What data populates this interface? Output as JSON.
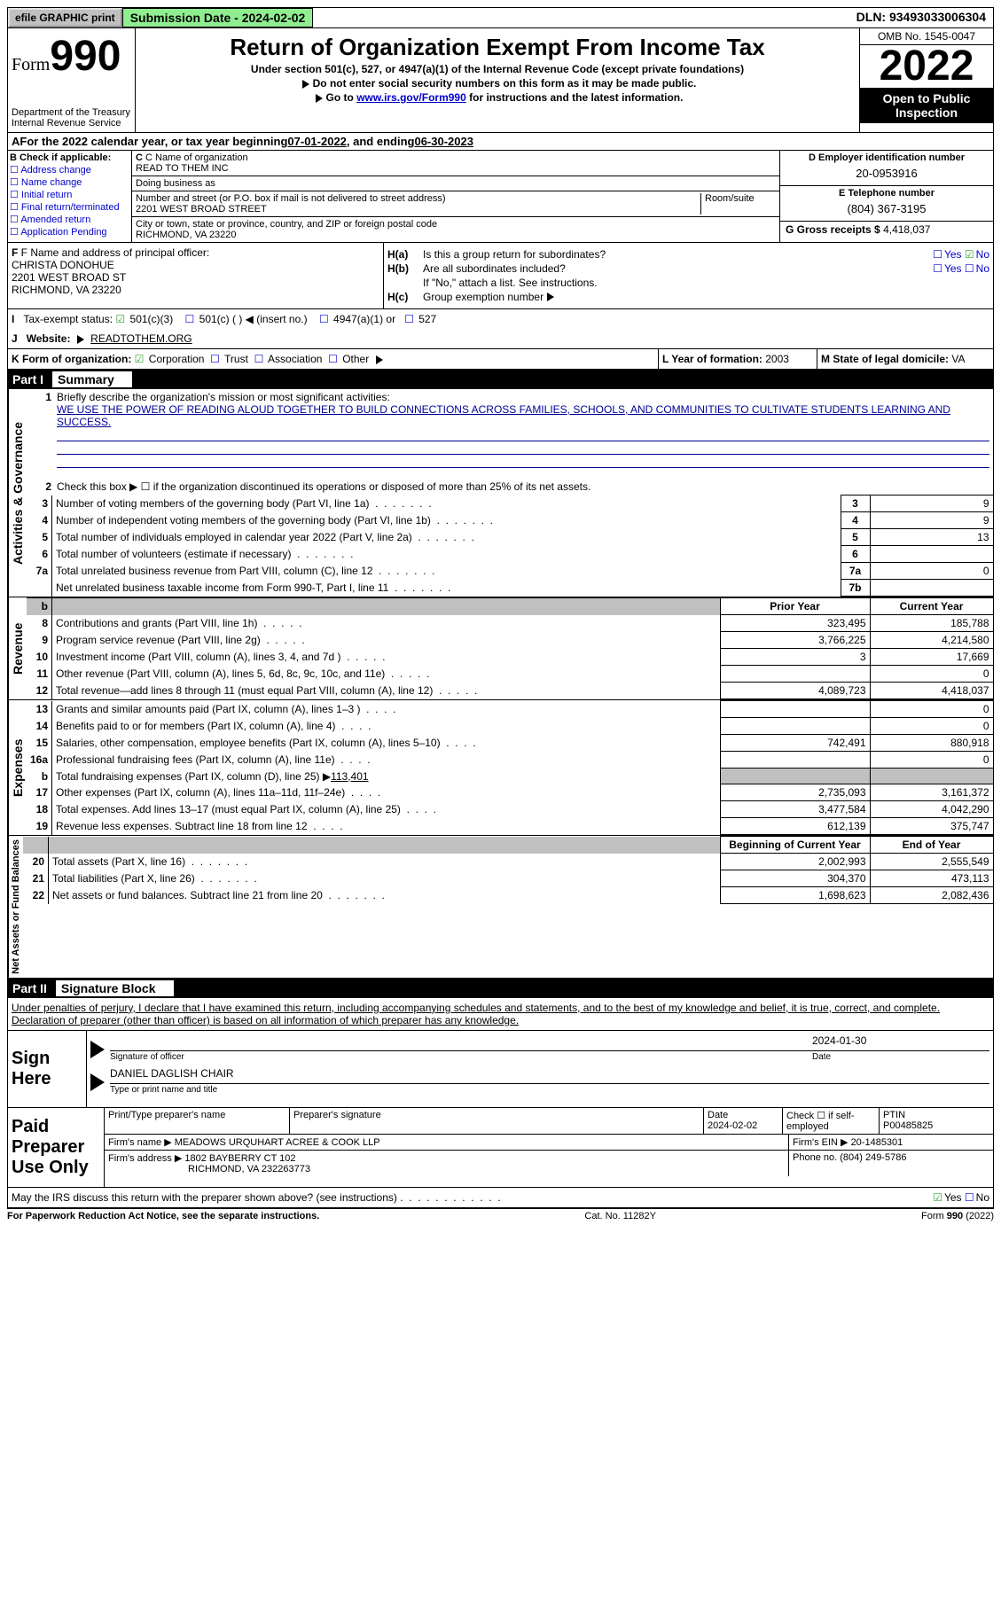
{
  "header": {
    "efile_button": "efile GRAPHIC print",
    "submission_date_label": "Submission Date - ",
    "submission_date": "2024-02-02",
    "dln_label": "DLN: ",
    "dln": "93493033006304"
  },
  "form": {
    "form_label": "Form",
    "form_number": "990",
    "title": "Return of Organization Exempt From Income Tax",
    "subtitle": "Under section 501(c), 527, or 4947(a)(1) of the Internal Revenue Code (except private foundations)",
    "note1": "Do not enter social security numbers on this form as it may be made public.",
    "note2_prefix": "Go to ",
    "note2_link": "www.irs.gov/Form990",
    "note2_suffix": " for instructions and the latest information.",
    "dept": "Department of the Treasury",
    "irs": "Internal Revenue Service",
    "omb": "OMB No. 1545-0047",
    "year": "2022",
    "open_public": "Open to Public Inspection"
  },
  "section_a": {
    "text_prefix": "For the 2022 calendar year, or tax year beginning ",
    "begin_date": "07-01-2022",
    "text_mid": " , and ending ",
    "end_date": "06-30-2023"
  },
  "section_b": {
    "label": "B Check if applicable:",
    "opts": [
      "Address change",
      "Name change",
      "Initial return",
      "Final return/terminated",
      "Amended return",
      "Application Pending"
    ]
  },
  "section_c": {
    "name_label": "C Name of organization",
    "name": "READ TO THEM INC",
    "dba_label": "Doing business as",
    "dba": "",
    "street_label": "Number and street (or P.O. box if mail is not delivered to street address)",
    "room_label": "Room/suite",
    "street": "2201 WEST BROAD STREET",
    "city_label": "City or town, state or province, country, and ZIP or foreign postal code",
    "city": "RICHMOND, VA  23220"
  },
  "section_d": {
    "label": "D Employer identification number",
    "value": "20-0953916"
  },
  "section_e": {
    "label": "E Telephone number",
    "value": "(804) 367-3195"
  },
  "section_g": {
    "label": "G Gross receipts $ ",
    "value": "4,418,037"
  },
  "section_f": {
    "label": "F Name and address of principal officer:",
    "name": "CHRISTA DONOHUE",
    "street": "2201 WEST BROAD ST",
    "city": "RICHMOND, VA  23220"
  },
  "section_h": {
    "ha_label": "Is this a group return for subordinates?",
    "hb_label": "Are all subordinates included?",
    "no_note": "If \"No,\" attach a list. See instructions.",
    "hc_label": "Group exemption number"
  },
  "section_i": {
    "label": "Tax-exempt status:",
    "c3": "501(c)(3)",
    "c_other": "501(c) (  ) ◀ (insert no.)",
    "a4947": "4947(a)(1) or",
    "s527": "527"
  },
  "section_j": {
    "label": "Website:",
    "value": "READTOTHEM.ORG"
  },
  "section_k": {
    "label": "K Form of organization:",
    "corp": "Corporation",
    "trust": "Trust",
    "assoc": "Association",
    "other": "Other"
  },
  "section_l": {
    "label": "L Year of formation: ",
    "value": "2003"
  },
  "section_m": {
    "label": "M State of legal domicile: ",
    "value": "VA"
  },
  "part1": {
    "header": "Part I",
    "title": "Summary",
    "vlabel1": "Activities & Governance",
    "vlabel2": "Revenue",
    "vlabel3": "Expenses",
    "vlabel4": "Net Assets or Fund Balances",
    "line1_label": "Briefly describe the organization's mission or most significant activities:",
    "mission": "WE USE THE POWER OF READING ALOUD TOGETHER TO BUILD CONNECTIONS ACROSS FAMILIES, SCHOOLS, AND COMMUNITIES TO CULTIVATE STUDENTS LEARNING AND SUCCESS.",
    "line2": "Check this box ▶ ☐ if the organization discontinued its operations or disposed of more than 25% of its net assets.",
    "lines": [
      {
        "n": "3",
        "desc": "Number of voting members of the governing body (Part VI, line 1a)",
        "box": "3",
        "val": "9"
      },
      {
        "n": "4",
        "desc": "Number of independent voting members of the governing body (Part VI, line 1b)",
        "box": "4",
        "val": "9"
      },
      {
        "n": "5",
        "desc": "Total number of individuals employed in calendar year 2022 (Part V, line 2a)",
        "box": "5",
        "val": "13"
      },
      {
        "n": "6",
        "desc": "Total number of volunteers (estimate if necessary)",
        "box": "6",
        "val": ""
      },
      {
        "n": "7a",
        "desc": "Total unrelated business revenue from Part VIII, column (C), line 12",
        "box": "7a",
        "val": "0"
      },
      {
        "n": "",
        "desc": "Net unrelated business taxable income from Form 990-T, Part I, line 11",
        "box": "7b",
        "val": ""
      }
    ],
    "col_prior": "Prior Year",
    "col_current": "Current Year",
    "revenue_lines": [
      {
        "n": "8",
        "desc": "Contributions and grants (Part VIII, line 1h)",
        "prior": "323,495",
        "current": "185,788"
      },
      {
        "n": "9",
        "desc": "Program service revenue (Part VIII, line 2g)",
        "prior": "3,766,225",
        "current": "4,214,580"
      },
      {
        "n": "10",
        "desc": "Investment income (Part VIII, column (A), lines 3, 4, and 7d )",
        "prior": "3",
        "current": "17,669"
      },
      {
        "n": "11",
        "desc": "Other revenue (Part VIII, column (A), lines 5, 6d, 8c, 9c, 10c, and 11e)",
        "prior": "",
        "current": "0"
      },
      {
        "n": "12",
        "desc": "Total revenue—add lines 8 through 11 (must equal Part VIII, column (A), line 12)",
        "prior": "4,089,723",
        "current": "4,418,037"
      }
    ],
    "expense_lines": [
      {
        "n": "13",
        "desc": "Grants and similar amounts paid (Part IX, column (A), lines 1–3 )",
        "prior": "",
        "current": "0"
      },
      {
        "n": "14",
        "desc": "Benefits paid to or for members (Part IX, column (A), line 4)",
        "prior": "",
        "current": "0"
      },
      {
        "n": "15",
        "desc": "Salaries, other compensation, employee benefits (Part IX, column (A), lines 5–10)",
        "prior": "742,491",
        "current": "880,918"
      },
      {
        "n": "16a",
        "desc": "Professional fundraising fees (Part IX, column (A), line 11e)",
        "prior": "",
        "current": "0"
      }
    ],
    "line_16b": "Total fundraising expenses (Part IX, column (D), line 25) ▶",
    "line_16b_val": "113,401",
    "expense_lines2": [
      {
        "n": "17",
        "desc": "Other expenses (Part IX, column (A), lines 11a–11d, 11f–24e)",
        "prior": "2,735,093",
        "current": "3,161,372"
      },
      {
        "n": "18",
        "desc": "Total expenses. Add lines 13–17 (must equal Part IX, column (A), line 25)",
        "prior": "3,477,584",
        "current": "4,042,290"
      },
      {
        "n": "19",
        "desc": "Revenue less expenses. Subtract line 18 from line 12",
        "prior": "612,139",
        "current": "375,747"
      }
    ],
    "col_begin": "Beginning of Current Year",
    "col_end": "End of Year",
    "net_lines": [
      {
        "n": "20",
        "desc": "Total assets (Part X, line 16)",
        "prior": "2,002,993",
        "current": "2,555,549"
      },
      {
        "n": "21",
        "desc": "Total liabilities (Part X, line 26)",
        "prior": "304,370",
        "current": "473,113"
      },
      {
        "n": "22",
        "desc": "Net assets or fund balances. Subtract line 21 from line 20",
        "prior": "1,698,623",
        "current": "2,082,436"
      }
    ]
  },
  "part2": {
    "header": "Part II",
    "title": "Signature Block",
    "declaration": "Under penalties of perjury, I declare that I have examined this return, including accompanying schedules and statements, and to the best of my knowledge and belief, it is true, correct, and complete. Declaration of preparer (other than officer) is based on all information of which preparer has any knowledge.",
    "sign_here": "Sign Here",
    "sig_officer": "Signature of officer",
    "sig_date": "2024-01-30",
    "date_label": "Date",
    "officer_name": "DANIEL DAGLISH CHAIR",
    "name_title_label": "Type or print name and title",
    "paid_label": "Paid Preparer Use Only",
    "prep_name_label": "Print/Type preparer's name",
    "prep_sig_label": "Preparer's signature",
    "prep_date_label": "Date",
    "prep_date": "2024-02-02",
    "check_self": "Check ☐ if self-employed",
    "ptin_label": "PTIN",
    "ptin": "P00485825",
    "firm_name_label": "Firm's name   ▶ ",
    "firm_name": "MEADOWS URQUHART ACREE & COOK LLP",
    "firm_ein_label": "Firm's EIN ▶ ",
    "firm_ein": "20-1485301",
    "firm_addr_label": "Firm's address ▶ ",
    "firm_addr1": "1802 BAYBERRY CT 102",
    "firm_addr2": "RICHMOND, VA  232263773",
    "phone_label": "Phone no. ",
    "phone": "(804) 249-5786",
    "discuss": "May the IRS discuss this return with the preparer shown above? (see instructions)",
    "footer_left": "For Paperwork Reduction Act Notice, see the separate instructions.",
    "footer_mid": "Cat. No. 11282Y",
    "footer_right": "Form 990 (2022)"
  }
}
